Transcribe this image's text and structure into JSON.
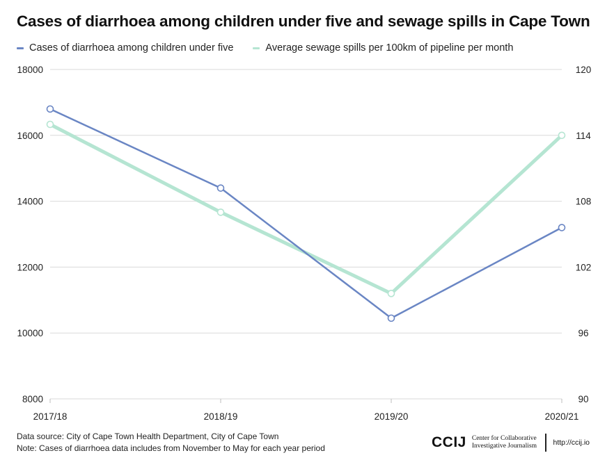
{
  "title": "Cases of diarrhoea among children under five and sewage spills in Cape Town",
  "footer": {
    "source": "Data source:  City of Cape Town Health Department, City of Cape Town",
    "note": "Note: Cases of diarrhoea data includes from November to May for each year period"
  },
  "logo": {
    "mark": "CCIJ",
    "line1": "Center for Collaborative",
    "line2": "Investigative Journalism",
    "url": "http://ccij.io"
  },
  "chart_data": {
    "type": "line",
    "title": "Cases of diarrhoea among children under five and sewage spills in Cape Town",
    "categories": [
      "2017/18",
      "2018/19",
      "2019/20",
      "2020/21"
    ],
    "series": [
      {
        "name": "Cases of diarrhoea among children under five",
        "axis": "left",
        "color": "#6a86c4",
        "values": [
          16800,
          14400,
          10450,
          13200
        ]
      },
      {
        "name": "Average sewage spills per 100km of pipeline per month",
        "axis": "right",
        "color": "#b5e5d2",
        "values": [
          115,
          107,
          99.6,
          114
        ]
      }
    ],
    "y_left": {
      "min": 8000,
      "max": 18000,
      "ticks": [
        8000,
        10000,
        12000,
        14000,
        16000,
        18000
      ]
    },
    "y_right": {
      "min": 90,
      "max": 120,
      "ticks": [
        90,
        96,
        102,
        108,
        114,
        120
      ]
    },
    "grid": true,
    "legend_position": "top-left"
  }
}
